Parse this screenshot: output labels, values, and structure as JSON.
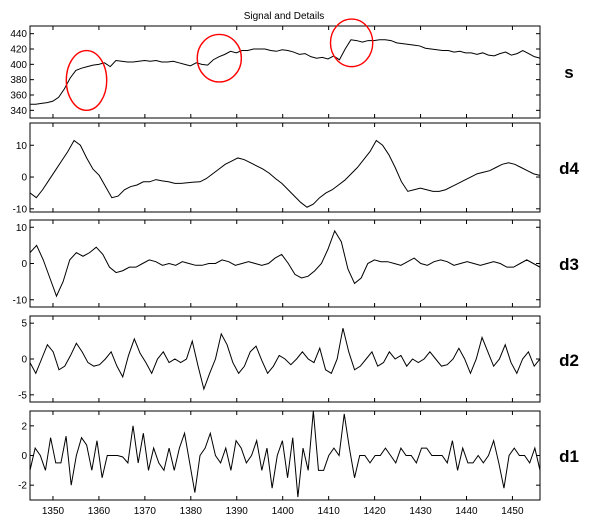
{
  "chart_data": {
    "type": "line",
    "title": "Signal and Details",
    "x_ticks": [
      1350,
      1360,
      1370,
      1380,
      1390,
      1400,
      1410,
      1420,
      1430,
      1440,
      1450
    ],
    "xlim": [
      1345,
      1456
    ],
    "x_start": 1345,
    "grid": false,
    "line_color": "#000000",
    "highlight_color": "#ff0000",
    "panels": [
      {
        "label": "s",
        "ylim": [
          330,
          450
        ],
        "y_ticks": [
          340,
          360,
          380,
          400,
          420,
          440
        ],
        "values": [
          348,
          348,
          349,
          350,
          352,
          357,
          368,
          382,
          392,
          395,
          397,
          399,
          400,
          402,
          397,
          405,
          404,
          403,
          403,
          404,
          405,
          404,
          405,
          403,
          403,
          404,
          402,
          400,
          398,
          402,
          400,
          399,
          406,
          410,
          413,
          417,
          415,
          418,
          418,
          420,
          420,
          420,
          418,
          417,
          419,
          418,
          416,
          413,
          414,
          410,
          408,
          409,
          407,
          411,
          406,
          420,
          432,
          431,
          429,
          431,
          431,
          432,
          432,
          431,
          428,
          427,
          426,
          425,
          424,
          421,
          420,
          419,
          418,
          418,
          416,
          417,
          415,
          415,
          413,
          415,
          412,
          411,
          414,
          416,
          412,
          414,
          418,
          414,
          410,
          408
        ],
        "circles": [
          {
            "cx": 1357.3,
            "cy": 379,
            "rx": 4.4,
            "ry": 39
          },
          {
            "cx": 1386.2,
            "cy": 408,
            "rx": 4.8,
            "ry": 31
          },
          {
            "cx": 1415.0,
            "cy": 428,
            "rx": 4.6,
            "ry": 31
          }
        ]
      },
      {
        "label": "d4",
        "ylim": [
          -11,
          17
        ],
        "y_ticks": [
          -10,
          0,
          10
        ],
        "values": [
          -5,
          -6.5,
          -4,
          -1,
          2,
          5,
          8,
          11.5,
          10,
          6,
          2.5,
          0.5,
          -3,
          -6.5,
          -6,
          -4,
          -3,
          -2.5,
          -1.5,
          -1.5,
          -0.8,
          -1.2,
          -1.5,
          -2,
          -2,
          -1.8,
          -1.6,
          -1.5,
          -0.5,
          1,
          2.5,
          4,
          5,
          6,
          5.5,
          4.5,
          3.5,
          2.5,
          1.2,
          -0.5,
          -2,
          -4,
          -6,
          -8,
          -9.5,
          -8.5,
          -6.5,
          -5,
          -4,
          -2.5,
          -1,
          1,
          3,
          5.5,
          8,
          11.5,
          10,
          7,
          3,
          -1.5,
          -4.5,
          -4,
          -3.5,
          -4,
          -4.5,
          -4.5,
          -4,
          -3,
          -2,
          -1,
          0,
          1,
          1.5,
          2,
          3,
          4,
          4.5,
          4,
          3,
          2,
          1,
          0.5
        ],
        "x_start": 1345
      },
      {
        "label": "d3",
        "ylim": [
          -12,
          12
        ],
        "y_ticks": [
          -10,
          0,
          10
        ],
        "values": [
          3,
          5,
          1,
          -4,
          -9,
          -5,
          1,
          3,
          2,
          3,
          4.5,
          2.5,
          -1,
          -2.5,
          -2,
          -1,
          -1,
          0,
          1,
          0.5,
          -0.5,
          0,
          -0.5,
          0.5,
          0,
          -0.5,
          -0.5,
          0,
          0,
          1,
          0.5,
          -0.5,
          0,
          0.5,
          0,
          -0.5,
          0,
          1.5,
          2.5,
          0,
          -3,
          -4,
          -3.5,
          -2,
          0,
          4,
          9,
          6,
          -1.5,
          -5.5,
          -4,
          0,
          1,
          0.5,
          0.5,
          0,
          -0.5,
          0.5,
          1.5,
          0,
          -0.5,
          0.5,
          1,
          0.5,
          -0.5,
          0,
          0.5,
          0,
          -0.5,
          0,
          0.5,
          0,
          -1,
          -1,
          0,
          1,
          0,
          -1
        ],
        "x_start": 1345
      },
      {
        "label": "d2",
        "ylim": [
          -6,
          6
        ],
        "y_ticks": [
          -5,
          0,
          5
        ],
        "values": [
          -0.5,
          -2,
          0,
          2,
          1,
          -1.5,
          -1,
          0.5,
          2.2,
          1,
          -0.5,
          -1,
          -0.8,
          0,
          1,
          -1,
          -2.5,
          0.5,
          2.8,
          0.8,
          -0.5,
          -2,
          0,
          1,
          -0.5,
          0,
          -0.5,
          0,
          2.5,
          -1,
          -4.2,
          -2,
          0,
          3.5,
          2,
          -0.5,
          -2,
          -1,
          1,
          1.8,
          -0.2,
          -2,
          -1,
          0.5,
          0,
          -0.8,
          0,
          1,
          0,
          -0.5,
          1.5,
          -1.5,
          -2,
          0,
          4.3,
          1,
          -1.5,
          -1,
          0,
          1,
          -1,
          -0.5,
          1,
          0,
          0.5,
          -1,
          0,
          -0.5,
          0,
          1,
          0,
          -1,
          -0.8,
          0,
          1.5,
          0,
          -2,
          0,
          3,
          1,
          -1,
          0,
          2,
          -0.5,
          -2,
          0,
          1,
          -1,
          0
        ],
        "x_start": 1345
      },
      {
        "label": "d1",
        "ylim": [
          -3,
          3
        ],
        "y_ticks": [
          -2,
          0,
          2
        ],
        "values": [
          -1,
          0.5,
          0,
          -1,
          1.2,
          -0.5,
          -0.5,
          1.3,
          -2,
          0,
          1.2,
          0.7,
          -1,
          1,
          -1.5,
          0,
          0,
          0,
          -0.1,
          -0.5,
          2,
          -0.5,
          1.5,
          -1,
          0.5,
          -0.5,
          -1,
          0.5,
          -1,
          0.5,
          1.5,
          -0.5,
          -2.5,
          0,
          0.5,
          1.5,
          0,
          -0.5,
          0.5,
          -1,
          1,
          0.5,
          -0.5,
          0,
          1,
          -1,
          0.5,
          -2.2,
          0,
          1,
          -1.5,
          1.2,
          -2.8,
          0.5,
          -1,
          3,
          -1,
          -1,
          0,
          0.5,
          0,
          2.8,
          0.5,
          -1.5,
          0,
          0,
          -0.5,
          0,
          0,
          0.5,
          0,
          -0.5,
          0.5,
          0,
          0,
          -0.5,
          0.5,
          0.5,
          0,
          0,
          0,
          -0.5,
          1,
          -1,
          0.5,
          -0.5,
          -0.5,
          0,
          -0.5,
          0,
          1,
          -0.5,
          -2.2,
          0,
          0.5,
          0,
          0,
          -0.5,
          0.5,
          -1
        ],
        "x_start": 1345
      }
    ]
  }
}
